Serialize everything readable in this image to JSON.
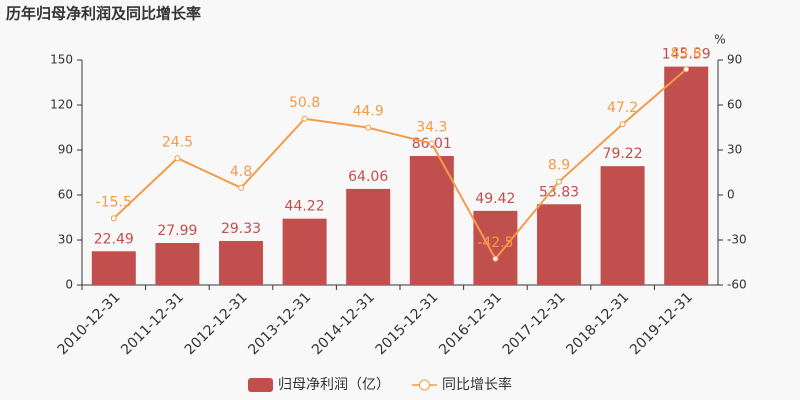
{
  "chart_data": {
    "type": "combo",
    "title": "历年归母净利润及同比增长率",
    "categories": [
      "2010-12-31",
      "2011-12-31",
      "2012-12-31",
      "2013-12-31",
      "2014-12-31",
      "2015-12-31",
      "2016-12-31",
      "2017-12-31",
      "2018-12-31",
      "2019-12-31"
    ],
    "series": [
      {
        "name": "归母净利润（亿）",
        "type": "bar",
        "color": "#c14f4d",
        "values": [
          22.49,
          27.99,
          29.33,
          44.22,
          64.06,
          86.01,
          49.42,
          53.83,
          79.22,
          145.59
        ]
      },
      {
        "name": "同比增长率",
        "type": "line",
        "axis": "y2",
        "color": "#f39c4a",
        "values": [
          -15.5,
          24.5,
          4.8,
          50.8,
          44.9,
          34.3,
          -42.5,
          8.9,
          47.2,
          83.8
        ]
      }
    ],
    "ylim": [
      0,
      150
    ],
    "yticks": [
      0,
      30,
      60,
      90,
      120,
      150
    ],
    "y2lim": [
      -60,
      90
    ],
    "y2ticks": [
      -60,
      -30,
      0,
      30,
      60,
      90
    ],
    "y2label": "%"
  }
}
